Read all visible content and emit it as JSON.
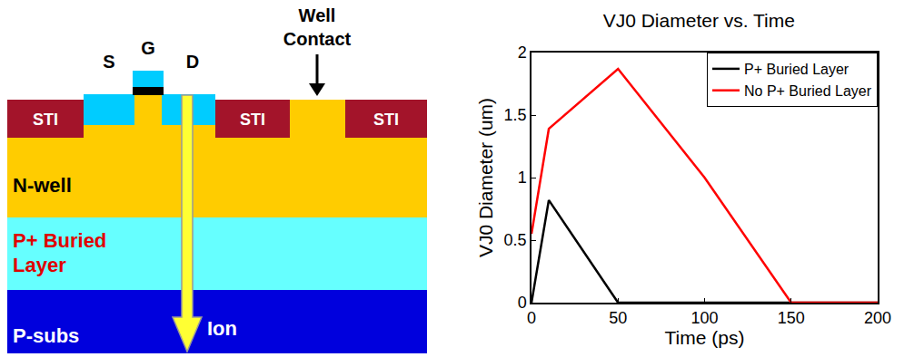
{
  "chart_data": {
    "type": "line",
    "title": "VJ0 Diameter vs. Time",
    "x_label": "Time (ps)",
    "y_label": "VJ0 Diameter (um)",
    "xlim": [
      0,
      200
    ],
    "xticks": [
      0,
      50,
      100,
      150,
      200
    ],
    "ylim": [
      0,
      2
    ],
    "yticks": [
      0,
      0.5,
      1,
      1.5,
      2
    ],
    "legend": "upper right",
    "grid": false,
    "series": [
      {
        "name": "P+ Buried Layer",
        "color": "#000000",
        "line_style": "solid",
        "x": [
          0,
          10,
          50,
          200
        ],
        "values": [
          0,
          0.82,
          0,
          0
        ]
      },
      {
        "name": "No P+ Buried Layer",
        "color": "#ff0000",
        "line_style": "solid",
        "x": [
          0,
          10,
          50,
          100,
          150,
          200
        ],
        "values": [
          0.55,
          1.39,
          1.87,
          1.0,
          0,
          0
        ]
      }
    ]
  },
  "diagram": {
    "terminals": {
      "source": "S",
      "gate": "G",
      "drain": "D"
    },
    "well_contact": [
      "Well",
      "Contact"
    ],
    "sti": "STI",
    "layers": {
      "n_well": "N-well",
      "buried": [
        "P+ Buried",
        "Layer"
      ],
      "substrate": "P-subs"
    },
    "ion": "Ion"
  }
}
